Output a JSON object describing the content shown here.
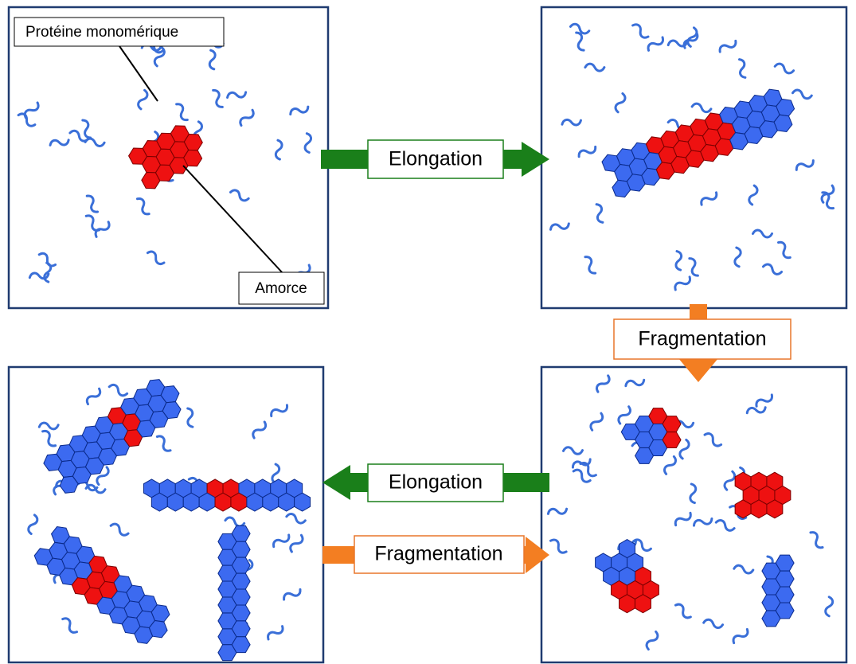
{
  "labels": {
    "monomer": "Protéine monomérique",
    "primer": "Amorce"
  },
  "steps": [
    {
      "label": "Elongation"
    },
    {
      "label": "Fragmentation"
    },
    {
      "label": "Elongation"
    },
    {
      "label": "Fragmentation"
    }
  ]
}
